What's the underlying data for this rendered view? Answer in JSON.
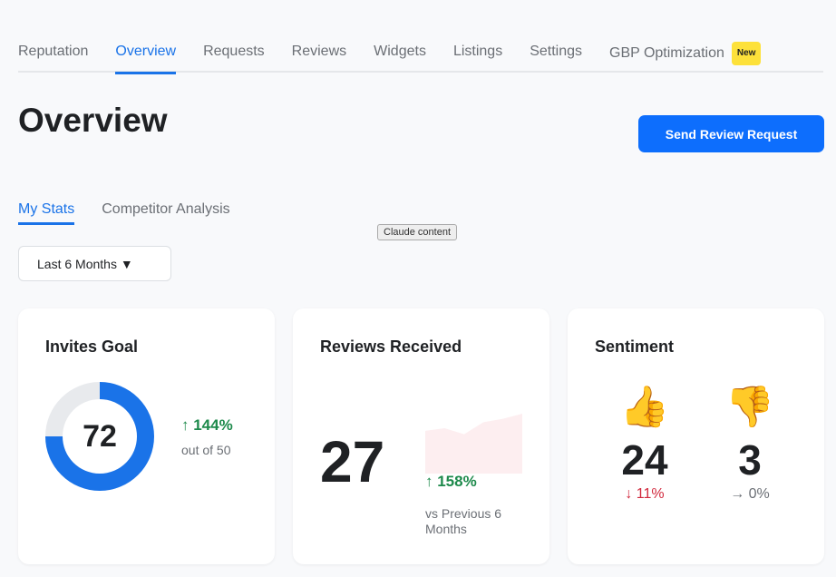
{
  "nav": {
    "tabs": [
      {
        "label": "Reputation"
      },
      {
        "label": "Overview"
      },
      {
        "label": "Requests"
      },
      {
        "label": "Reviews"
      },
      {
        "label": "Widgets"
      },
      {
        "label": "Listings"
      },
      {
        "label": "Settings"
      },
      {
        "label": "GBP Optimization"
      }
    ],
    "badge": "New",
    "active": "Overview"
  },
  "page": {
    "title": "Overview",
    "send_button": "Send Review Request"
  },
  "subtabs": [
    {
      "label": "My Stats"
    },
    {
      "label": "Competitor Analysis"
    }
  ],
  "tooltip": "Claude content",
  "period": "Last 6 Months ▼",
  "invites": {
    "title": "Invites Goal",
    "value": "72",
    "change": "↑ 144%",
    "goal": "out of 50",
    "ring_fraction": 0.75,
    "colors": {
      "fill": "#1a73e8",
      "track": "#e8eaed"
    }
  },
  "reviews": {
    "title": "Reviews Received",
    "value": "27",
    "change": "↑ 158%",
    "compare": "vs Previous 6 Months",
    "sparkline": [
      5,
      5.3,
      4.6,
      6,
      6.4,
      7
    ]
  },
  "sentiment": {
    "title": "Sentiment",
    "positive": {
      "icon": "👍",
      "value": "24",
      "change": "↓ 11%"
    },
    "negative": {
      "icon": "👎",
      "value": "3",
      "change": "→ 0%"
    }
  }
}
